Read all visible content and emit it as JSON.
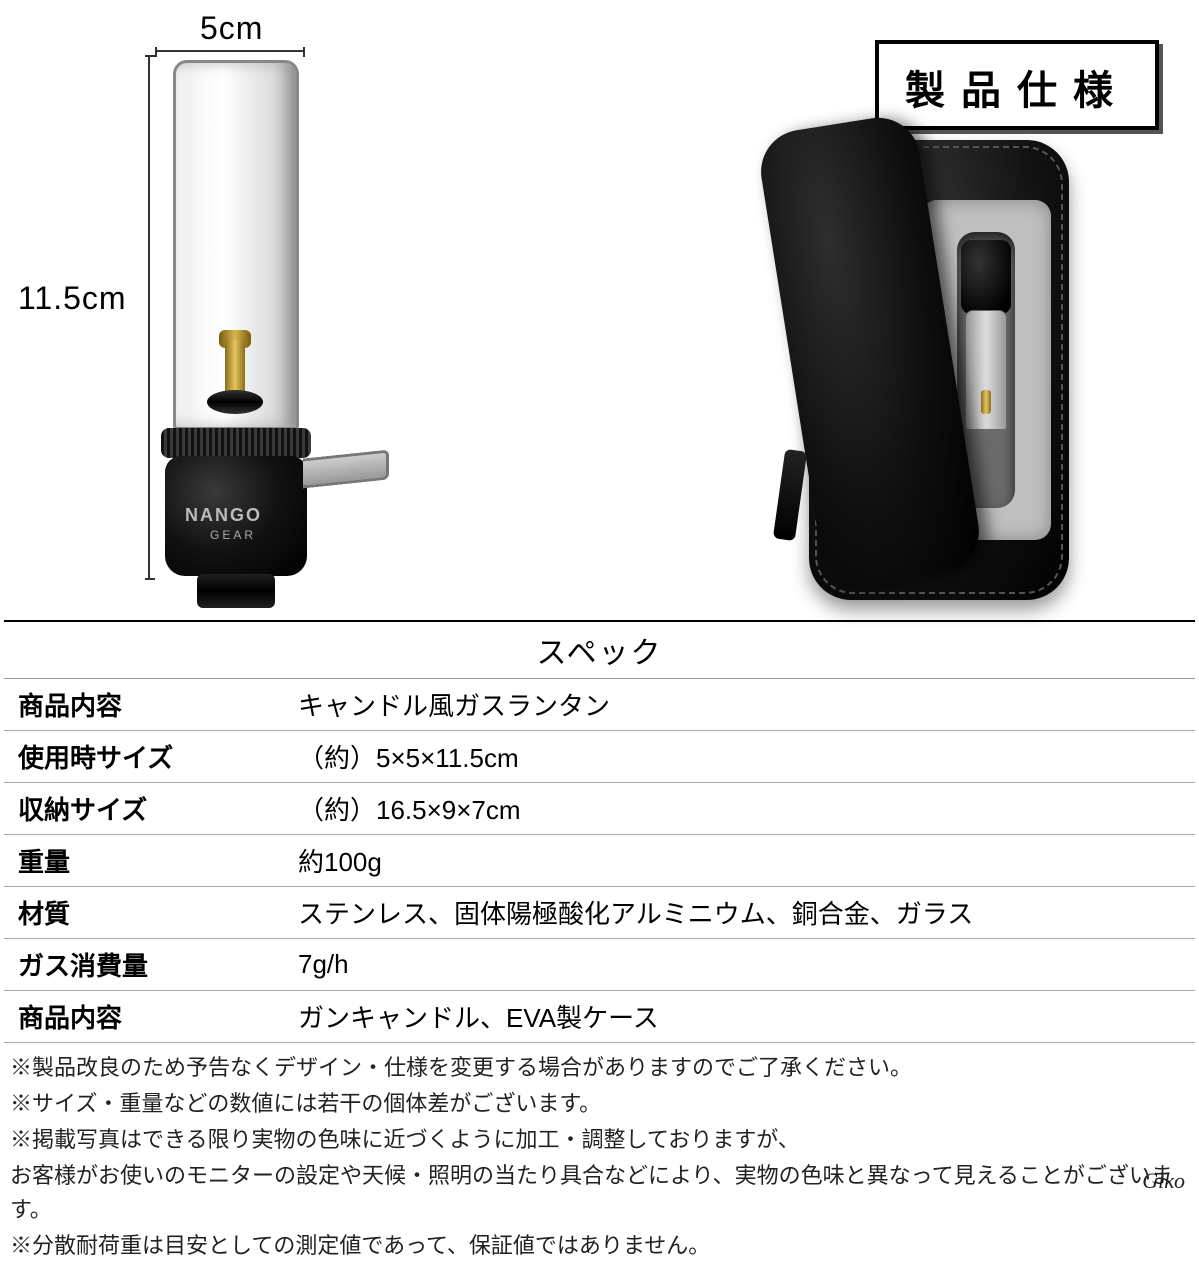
{
  "dimensions": {
    "top_label": "5cm",
    "side_label": "11.5cm"
  },
  "brand": {
    "name": "NANGO",
    "sub": "GEAR"
  },
  "badge": {
    "text": "製品仕様"
  },
  "spec": {
    "title": "スペック",
    "rows": [
      {
        "label": "商品内容",
        "value": "キャンドル風ガスランタン"
      },
      {
        "label": "使用時サイズ",
        "value": "（約）5×5×11.5cm"
      },
      {
        "label": "収納サイズ",
        "value": "（約）16.5×9×7cm"
      },
      {
        "label": "重量",
        "value": "約100g"
      },
      {
        "label": "材質",
        "value": "ステンレス、固体陽極酸化アルミニウム、銅合金、ガラス"
      },
      {
        "label": "ガス消費量",
        "value": "7g/h"
      },
      {
        "label": "商品内容",
        "value": "ガンキャンドル、EVA製ケース"
      }
    ]
  },
  "notes": [
    "※製品改良のため予告なくデザイン・仕様を変更する場合がありますのでご了承ください。",
    "※サイズ・重量などの数値には若干の個体差がございます。",
    "※掲載写真はできる限り実物の色味に近づくように加工・調整しておりますが、",
    "お客様がお使いのモニターの設定や天候・照明の当たり具合などにより、実物の色味と異なって見えることがございます。",
    "※分散耐荷重は目安としての測定値であって、保証値ではありません。"
  ],
  "signature": "Glko",
  "colors": {
    "text": "#000000",
    "border": "#000000",
    "row_border": "#a8a8a8",
    "background": "#ffffff"
  },
  "typography": {
    "badge_fontsize": 40,
    "title_fontsize": 30,
    "table_fontsize": 26,
    "notes_fontsize": 22,
    "dim_fontsize": 32
  }
}
